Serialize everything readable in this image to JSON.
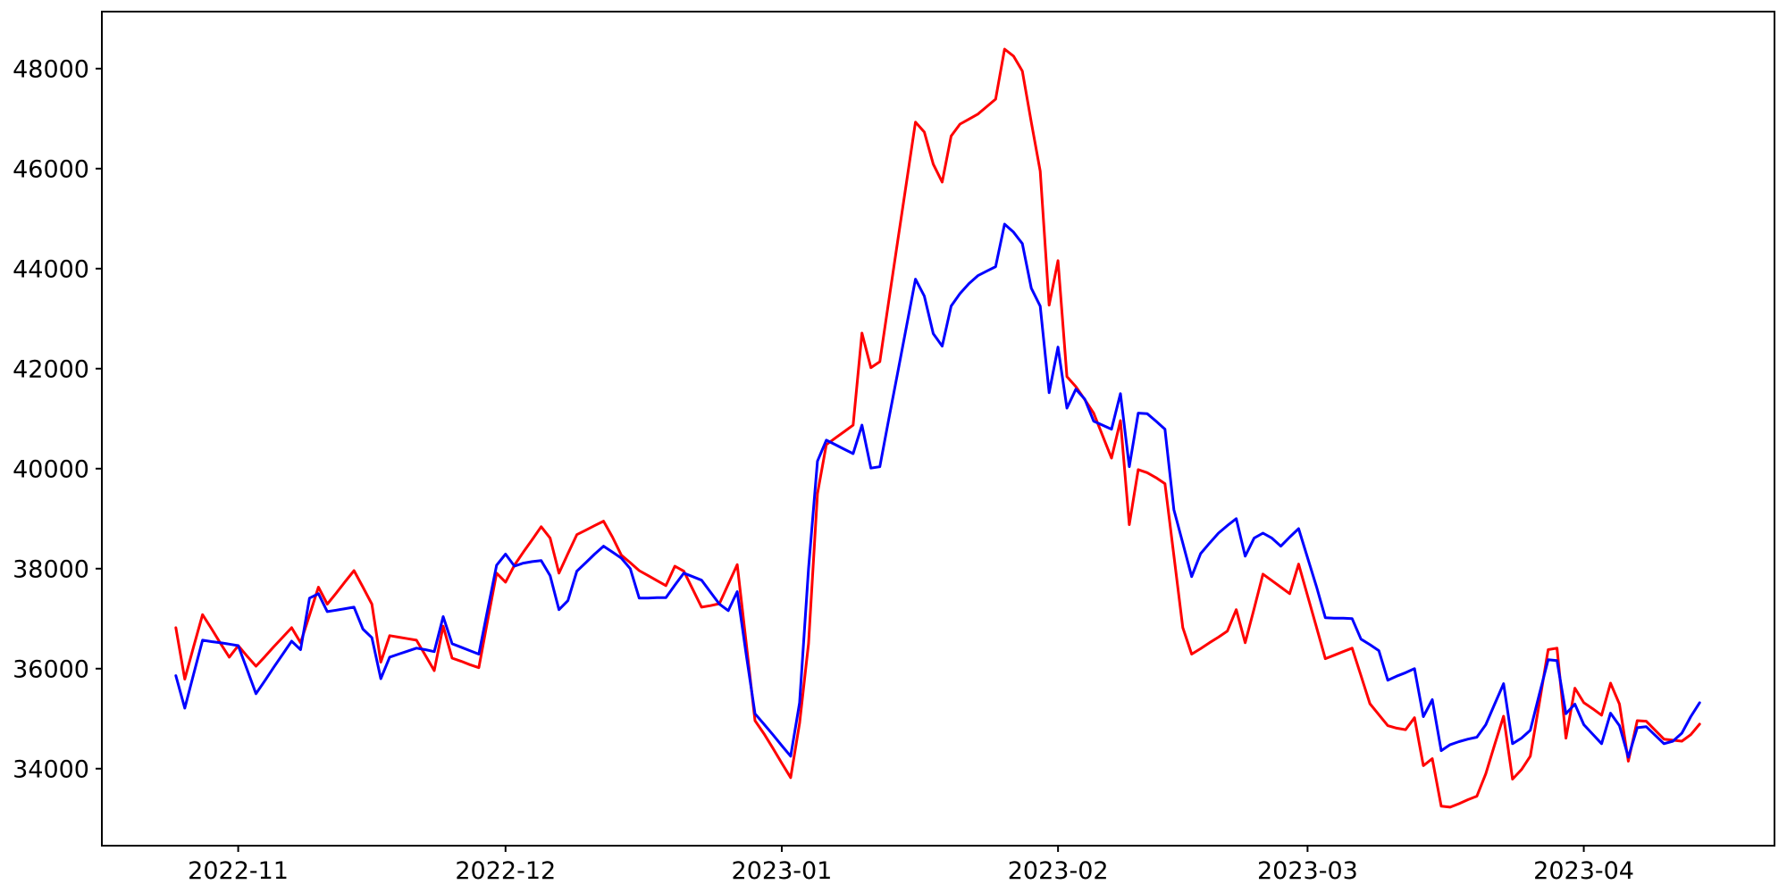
{
  "chart_data": {
    "type": "line",
    "title": "",
    "xlabel": "",
    "ylabel": "",
    "grid": false,
    "legend": null,
    "background_color": "#ffffff",
    "axis_color": "#000000",
    "start_date": "2022-10-25",
    "end_date": "2023-04-14",
    "x_unit": "days since start_date (one value per day)",
    "x_ticks": [
      {
        "label": "2022-11",
        "day": 7
      },
      {
        "label": "2022-12",
        "day": 37
      },
      {
        "label": "2023-01",
        "day": 68
      },
      {
        "label": "2023-02",
        "day": 99
      },
      {
        "label": "2023-03",
        "day": 127
      },
      {
        "label": "2023-04",
        "day": 158
      }
    ],
    "y_ticks": [
      "34000",
      "36000",
      "38000",
      "40000",
      "42000",
      "44000",
      "46000",
      "48000"
    ],
    "y_tick_values": [
      34000,
      36000,
      38000,
      40000,
      42000,
      44000,
      46000,
      48000
    ],
    "ylim": [
      32460,
      49140
    ],
    "xlim_days": [
      -8.3,
      179.4
    ],
    "series": [
      {
        "name": "red-series",
        "color": "#ff0000",
        "values": [
          36820,
          35790,
          36440,
          37080,
          36800,
          36510,
          36230,
          36460,
          36250,
          36050,
          36240,
          36440,
          36630,
          36820,
          36520,
          37070,
          37630,
          37290,
          37510,
          37740,
          37960,
          37630,
          37290,
          36130,
          36660,
          36630,
          36600,
          36570,
          36270,
          35960,
          36850,
          36210,
          36150,
          36080,
          36020,
          36970,
          37910,
          37730,
          38070,
          38330,
          38580,
          38840,
          38610,
          37910,
          38300,
          38680,
          38770,
          38860,
          38950,
          38630,
          38270,
          38120,
          37960,
          37860,
          37760,
          37660,
          38050,
          37950,
          37590,
          37230,
          37260,
          37300,
          37690,
          38080,
          36520,
          34960,
          34700,
          34410,
          34110,
          33820,
          34910,
          36500,
          39500,
          40480,
          40610,
          40740,
          40870,
          42710,
          42020,
          42140,
          43340,
          44540,
          45730,
          46930,
          46730,
          46090,
          45730,
          46650,
          46890,
          46990,
          47090,
          47240,
          47390,
          48390,
          48250,
          47950,
          46930,
          45950,
          43270,
          44160,
          41840,
          41640,
          41380,
          41110,
          40660,
          40210,
          40960,
          38880,
          39980,
          39920,
          39820,
          39700,
          38260,
          36820,
          36290,
          36400,
          36520,
          36630,
          36750,
          37180,
          36520,
          37200,
          37890,
          37760,
          37630,
          37500,
          38090,
          37460,
          36830,
          36200,
          36270,
          36340,
          36410,
          35860,
          35300,
          35080,
          34860,
          34810,
          34780,
          35020,
          34060,
          34200,
          33250,
          33230,
          33300,
          33380,
          33450,
          33900,
          34480,
          35050,
          33790,
          33980,
          34250,
          35300,
          36380,
          36410,
          34610,
          35610,
          35320,
          35200,
          35070,
          35710,
          35290,
          34150,
          34960,
          34950,
          34770,
          34590,
          34570,
          34550,
          34680,
          34890
        ]
      },
      {
        "name": "blue-series",
        "color": "#0000ff",
        "values": [
          35860,
          35210,
          35890,
          36570,
          36540,
          36520,
          36490,
          36460,
          35980,
          35500,
          35760,
          36030,
          36290,
          36550,
          36380,
          37410,
          37500,
          37140,
          37170,
          37200,
          37230,
          36790,
          36620,
          35800,
          36230,
          36290,
          36350,
          36410,
          36380,
          36340,
          37040,
          36500,
          36430,
          36360,
          36290,
          37180,
          38070,
          38290,
          38050,
          38110,
          38140,
          38160,
          37860,
          37180,
          37360,
          37950,
          38120,
          38290,
          38450,
          38330,
          38210,
          38000,
          37410,
          37410,
          37420,
          37420,
          37670,
          37910,
          37840,
          37770,
          37530,
          37290,
          37160,
          37540,
          36290,
          35100,
          34890,
          34680,
          34460,
          34250,
          35320,
          38000,
          40150,
          40570,
          40480,
          40390,
          40300,
          40870,
          40010,
          40040,
          40980,
          41910,
          42850,
          43790,
          43450,
          42700,
          42450,
          43250,
          43500,
          43700,
          43860,
          43950,
          44040,
          44890,
          44730,
          44500,
          43610,
          43250,
          41520,
          42430,
          41210,
          41590,
          41390,
          40950,
          40870,
          40790,
          41500,
          40040,
          41110,
          41100,
          40950,
          40790,
          39180,
          38510,
          37840,
          38300,
          38510,
          38710,
          38860,
          39000,
          38250,
          38610,
          38710,
          38610,
          38450,
          38630,
          38800,
          38220,
          37640,
          37020,
          37010,
          37010,
          37000,
          36590,
          36480,
          36360,
          35770,
          35850,
          35920,
          36000,
          35040,
          35380,
          34360,
          34480,
          34540,
          34590,
          34630,
          34880,
          35290,
          35700,
          34500,
          34610,
          34770,
          35480,
          36180,
          36160,
          35100,
          35290,
          34880,
          34690,
          34500,
          35110,
          34860,
          34230,
          34820,
          34840,
          34670,
          34500,
          34550,
          34710,
          35040,
          35320
        ]
      }
    ]
  }
}
